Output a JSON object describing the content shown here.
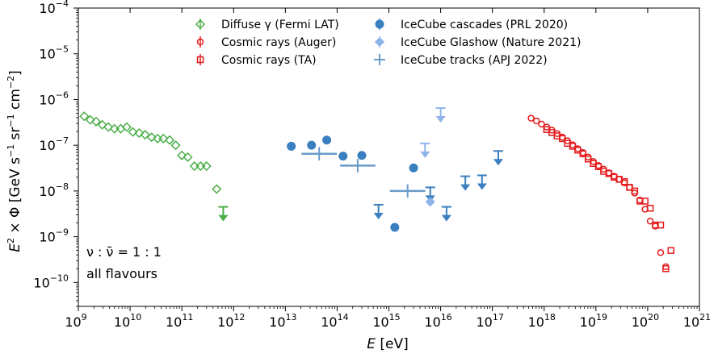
{
  "chart_data": {
    "type": "scatter",
    "xscale": "log",
    "yscale": "log",
    "xlim": [
      1000000000.0,
      1e+21
    ],
    "ylim": [
      3e-11,
      0.0001
    ],
    "xlabel_var": "E",
    "xlabel_unit": " [eV]",
    "ylabel_prefix": "E",
    "ylabel_var": "× Φ [GeV s",
    "ylabel_unit1": "−1",
    "ylabel_mid": " sr",
    "ylabel_unit2": "−1",
    "ylabel_cm": " cm",
    "ylabel_unit3": "−2",
    "ylabel_close": "]",
    "x_ticks": [
      {
        "base": "10",
        "exp": "9",
        "value": 1000000000.0
      },
      {
        "base": "10",
        "exp": "10",
        "value": 10000000000.0
      },
      {
        "base": "10",
        "exp": "11",
        "value": 100000000000.0
      },
      {
        "base": "10",
        "exp": "12",
        "value": 1000000000000.0
      },
      {
        "base": "10",
        "exp": "13",
        "value": 10000000000000.0
      },
      {
        "base": "10",
        "exp": "14",
        "value": 100000000000000.0
      },
      {
        "base": "10",
        "exp": "15",
        "value": 1000000000000000.0
      },
      {
        "base": "10",
        "exp": "16",
        "value": 1e+16
      },
      {
        "base": "10",
        "exp": "17",
        "value": 1e+17
      },
      {
        "base": "10",
        "exp": "18",
        "value": 1e+18
      },
      {
        "base": "10",
        "exp": "19",
        "value": 1e+19
      },
      {
        "base": "10",
        "exp": "20",
        "value": 1e+20
      },
      {
        "base": "10",
        "exp": "21",
        "value": 1e+21
      }
    ],
    "y_ticks": [
      {
        "base": "10",
        "exp": "−10",
        "value": 1e-10
      },
      {
        "base": "10",
        "exp": "−9",
        "value": 1e-09
      },
      {
        "base": "10",
        "exp": "−8",
        "value": 1e-08
      },
      {
        "base": "10",
        "exp": "−7",
        "value": 1e-07
      },
      {
        "base": "10",
        "exp": "−6",
        "value": 1e-06
      },
      {
        "base": "10",
        "exp": "−5",
        "value": 1e-05
      },
      {
        "base": "10",
        "exp": "−4",
        "value": 0.0001
      }
    ],
    "annotation_line1": "ν : ν̄ = 1 : 1",
    "annotation_line2": "all flavours",
    "legend": [
      {
        "label": "Diffuse γ (Fermi LAT)",
        "color": "#4daf4a",
        "marker": "diamond-open"
      },
      {
        "label": "Cosmic rays (Auger)",
        "color": "#e41a1c",
        "marker": "circle-open"
      },
      {
        "label": "Cosmic rays (TA)",
        "color": "#e41a1c",
        "marker": "square-open"
      },
      {
        "label": "IceCube cascades (PRL 2020)",
        "color": "#3a7fbf",
        "marker": "circle-filled"
      },
      {
        "label": "IceCube Glashow (Nature 2021)",
        "color": "#8fb4ea",
        "marker": "diamond-filled"
      },
      {
        "label": "IceCube tracks (APJ 2022)",
        "color": "#6b9bc9",
        "marker": "cross"
      }
    ],
    "series": [
      {
        "name": "Diffuse γ (Fermi LAT)",
        "color": "#4daf4a",
        "points": [
          {
            "x": 1300000000.0,
            "y": 4.3e-07
          },
          {
            "x": 1700000000.0,
            "y": 3.6e-07
          },
          {
            "x": 2200000000.0,
            "y": 3.3e-07
          },
          {
            "x": 2900000000.0,
            "y": 2.8e-07
          },
          {
            "x": 3800000000.0,
            "y": 2.5e-07
          },
          {
            "x": 5000000000.0,
            "y": 2.3e-07
          },
          {
            "x": 6600000000.0,
            "y": 2.3e-07
          },
          {
            "x": 8600000000.0,
            "y": 2.5e-07
          },
          {
            "x": 11300000000.0,
            "y": 1.95e-07
          },
          {
            "x": 15000000000.0,
            "y": 1.85e-07
          },
          {
            "x": 19500000000.0,
            "y": 1.7e-07
          },
          {
            "x": 26000000000.0,
            "y": 1.5e-07
          },
          {
            "x": 34000000000.0,
            "y": 1.4e-07
          },
          {
            "x": 44000000000.0,
            "y": 1.4e-07
          },
          {
            "x": 58000000000.0,
            "y": 1.3e-07
          },
          {
            "x": 76000000000.0,
            "y": 1e-07
          },
          {
            "x": 100000000000.0,
            "y": 6e-08
          },
          {
            "x": 130000000000.0,
            "y": 5.5e-08
          },
          {
            "x": 175000000000.0,
            "y": 3.5e-08
          },
          {
            "x": 230000000000.0,
            "y": 3.5e-08
          },
          {
            "x": 300000000000.0,
            "y": 3.5e-08
          },
          {
            "x": 470000000000.0,
            "y": 1.1e-08
          },
          {
            "x": 630000000000.0,
            "y": 4.5e-09,
            "upper_limit": true
          }
        ]
      },
      {
        "name": "Cosmic rays (Auger)",
        "color": "#e41a1c",
        "points": [
          {
            "x": 5.6e+17,
            "y": 3.9e-07
          },
          {
            "x": 7.1e+17,
            "y": 3.4e-07
          },
          {
            "x": 8.9e+17,
            "y": 2.9e-07
          },
          {
            "x": 1.12e+18,
            "y": 2.5e-07
          },
          {
            "x": 1.41e+18,
            "y": 2.15e-07
          },
          {
            "x": 1.78e+18,
            "y": 1.8e-07
          },
          {
            "x": 2.24e+18,
            "y": 1.5e-07
          },
          {
            "x": 2.82e+18,
            "y": 1.25e-07
          },
          {
            "x": 3.55e+18,
            "y": 1.02e-07
          },
          {
            "x": 4.47e+18,
            "y": 8.4e-08
          },
          {
            "x": 5.62e+18,
            "y": 6.9e-08
          },
          {
            "x": 7.08e+18,
            "y": 5.5e-08
          },
          {
            "x": 8.91e+18,
            "y": 4.4e-08
          },
          {
            "x": 1.12e+19,
            "y": 3.6e-08
          },
          {
            "x": 1.41e+19,
            "y": 3e-08
          },
          {
            "x": 1.78e+19,
            "y": 2.5e-08
          },
          {
            "x": 2.24e+19,
            "y": 2.1e-08
          },
          {
            "x": 2.82e+19,
            "y": 1.8e-08
          },
          {
            "x": 3.55e+19,
            "y": 1.5e-08
          },
          {
            "x": 4.47e+19,
            "y": 1.2e-08
          },
          {
            "x": 5.62e+19,
            "y": 9e-09
          },
          {
            "x": 7.08e+19,
            "y": 6.3e-09
          },
          {
            "x": 8.91e+19,
            "y": 4e-09
          },
          {
            "x": 1.12e+20,
            "y": 2.2e-09
          },
          {
            "x": 1.41e+20,
            "y": 1.7e-09
          },
          {
            "x": 1.78e+20,
            "y": 4.5e-10
          },
          {
            "x": 2.24e+20,
            "y": 2.2e-10
          }
        ]
      },
      {
        "name": "Cosmic rays (TA)",
        "color": "#e41a1c",
        "points": [
          {
            "x": 1.12e+18,
            "y": 2.2e-07
          },
          {
            "x": 1.41e+18,
            "y": 1.9e-07
          },
          {
            "x": 1.78e+18,
            "y": 1.6e-07
          },
          {
            "x": 2.24e+18,
            "y": 1.4e-07
          },
          {
            "x": 2.82e+18,
            "y": 1.1e-07
          },
          {
            "x": 3.55e+18,
            "y": 9.5e-08
          },
          {
            "x": 4.47e+18,
            "y": 7.8e-08
          },
          {
            "x": 5.62e+18,
            "y": 6.5e-08
          },
          {
            "x": 7.08e+18,
            "y": 5e-08
          },
          {
            "x": 8.91e+18,
            "y": 4e-08
          },
          {
            "x": 1.12e+19,
            "y": 3.4e-08
          },
          {
            "x": 1.41e+19,
            "y": 2.7e-08
          },
          {
            "x": 1.78e+19,
            "y": 2.4e-08
          },
          {
            "x": 2.24e+19,
            "y": 2e-08
          },
          {
            "x": 2.82e+19,
            "y": 1.8e-08
          },
          {
            "x": 3.55e+19,
            "y": 1.6e-08
          },
          {
            "x": 4.47e+19,
            "y": 1.2e-08
          },
          {
            "x": 5.62e+19,
            "y": 1e-08
          },
          {
            "x": 7.08e+19,
            "y": 6e-09
          },
          {
            "x": 8.91e+19,
            "y": 6e-09
          },
          {
            "x": 1.12e+20,
            "y": 4.2e-09
          },
          {
            "x": 1.41e+20,
            "y": 1.8e-09
          },
          {
            "x": 1.78e+20,
            "y": 1.8e-09
          },
          {
            "x": 2.24e+20,
            "y": 2e-10
          },
          {
            "x": 2.82e+20,
            "y": 5e-10
          }
        ]
      },
      {
        "name": "IceCube cascades (PRL 2020)",
        "color": "#3a7fbf",
        "points": [
          {
            "x": 13000000000000.0,
            "y": 9.5e-08
          },
          {
            "x": 32000000000000.0,
            "y": 1e-07
          },
          {
            "x": 63000000000000.0,
            "y": 1.3e-07
          },
          {
            "x": 130000000000000.0,
            "y": 5.8e-08
          },
          {
            "x": 300000000000000.0,
            "y": 6e-08
          },
          {
            "x": 630000000000000.0,
            "y": 5e-09,
            "upper_limit": true
          },
          {
            "x": 1300000000000000.0,
            "y": 1.6e-09
          },
          {
            "x": 3000000000000000.0,
            "y": 3.2e-08
          },
          {
            "x": 6300000000000000.0,
            "y": 1.2e-08,
            "upper_limit": true
          },
          {
            "x": 1.3e+16,
            "y": 4.5e-09,
            "upper_limit": true
          },
          {
            "x": 3e+16,
            "y": 2.1e-08,
            "upper_limit": true
          },
          {
            "x": 6.3e+16,
            "y": 2.2e-08,
            "upper_limit": true
          },
          {
            "x": 1.3e+17,
            "y": 7.5e-08,
            "upper_limit": true
          }
        ]
      },
      {
        "name": "IceCube Glashow (Nature 2021)",
        "color": "#8fb4ea",
        "points": [
          {
            "x": 6300000000000000.0,
            "y": 5.8e-09
          },
          {
            "x": 5000000000000000.0,
            "y": 1.1e-07,
            "upper_limit": true
          },
          {
            "x": 1e+16,
            "y": 6.5e-07,
            "upper_limit": true
          }
        ]
      },
      {
        "name": "IceCube tracks (APJ 2022)",
        "color": "#6b9bc9",
        "points": [
          {
            "x": 45000000000000.0,
            "y": 6.5e-08
          },
          {
            "x": 250000000000000.0,
            "y": 3.6e-08
          },
          {
            "x": 2300000000000000.0,
            "y": 1e-08
          }
        ]
      }
    ]
  }
}
